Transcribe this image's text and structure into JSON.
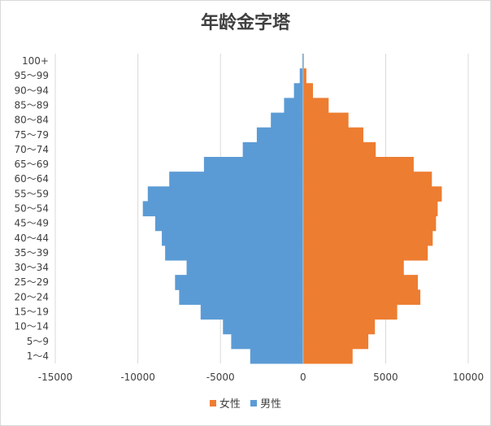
{
  "chart_data": {
    "type": "bar",
    "orientation": "horizontal",
    "title": "年龄金字塔",
    "categories": [
      "1～4",
      "5～9",
      "10～14",
      "15～19",
      "20～24",
      "25～29",
      "30～34",
      "35～39",
      "40～44",
      "45～49",
      "50～54",
      "55～59",
      "60～64",
      "65～69",
      "70～74",
      "75～79",
      "80～84",
      "85～89",
      "90～94",
      "95～99",
      "100+"
    ],
    "series": [
      {
        "name": "女性",
        "color": "#ED7D31",
        "values": [
          3000,
          3950,
          4350,
          5700,
          7100,
          6950,
          6100,
          7550,
          7850,
          8050,
          8150,
          8400,
          7800,
          6700,
          4400,
          3650,
          2750,
          1550,
          600,
          200,
          50
        ]
      },
      {
        "name": "男性",
        "color": "#5B9BD5",
        "values": [
          -3200,
          -4350,
          -4850,
          -6200,
          -7500,
          -7750,
          -7050,
          -8350,
          -8550,
          -8950,
          -9700,
          -9400,
          -8100,
          -6000,
          -3650,
          -2800,
          -1950,
          -1150,
          -550,
          -200,
          -50
        ]
      }
    ],
    "xticks": [
      "-15000",
      "-10000",
      "-5000",
      "0",
      "5000",
      "10000"
    ],
    "xlim": [
      -15000,
      10000
    ],
    "grid": true,
    "legend_position": "bottom"
  }
}
